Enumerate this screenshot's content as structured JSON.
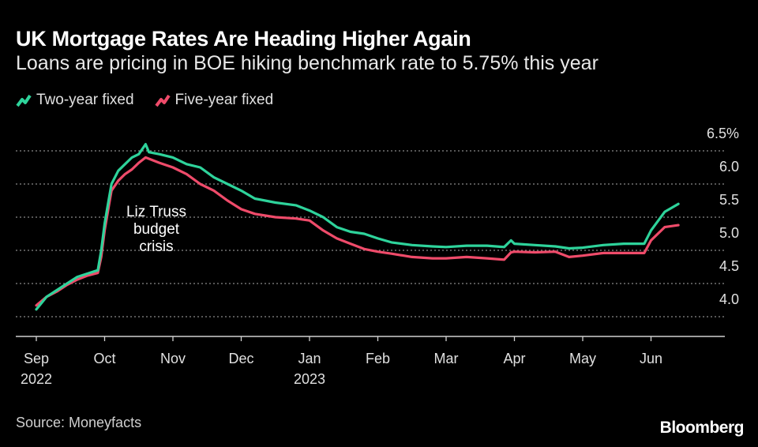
{
  "chart_data": {
    "type": "line",
    "title": "UK Mortgage Rates Are Heading Higher Again",
    "subtitle": "Loans are pricing in BOE hiking benchmark rate to 5.75% this year",
    "ylim": [
      3.75,
      6.75
    ],
    "yticks": [
      {
        "value": 6.5,
        "label": "6.5%"
      },
      {
        "value": 6.0,
        "label": "6.0"
      },
      {
        "value": 5.5,
        "label": "5.5"
      },
      {
        "value": 5.0,
        "label": "5.0"
      },
      {
        "value": 4.5,
        "label": "4.5"
      },
      {
        "value": 4.0,
        "label": "4.0"
      }
    ],
    "xticks": [
      {
        "month": 0,
        "label": "Sep",
        "sub": "2022"
      },
      {
        "month": 1,
        "label": "Oct",
        "sub": ""
      },
      {
        "month": 2,
        "label": "Nov",
        "sub": ""
      },
      {
        "month": 3,
        "label": "Dec",
        "sub": ""
      },
      {
        "month": 4,
        "label": "Jan",
        "sub": "2023"
      },
      {
        "month": 5,
        "label": "Feb",
        "sub": ""
      },
      {
        "month": 6,
        "label": "Mar",
        "sub": ""
      },
      {
        "month": 7,
        "label": "Apr",
        "sub": ""
      },
      {
        "month": 8,
        "label": "May",
        "sub": ""
      },
      {
        "month": 9,
        "label": "Jun",
        "sub": ""
      }
    ],
    "series": [
      {
        "name": "Two-year fixed",
        "color": "#2ed39b",
        "points": [
          [
            0,
            4.11
          ],
          [
            0.15,
            4.3
          ],
          [
            0.3,
            4.4
          ],
          [
            0.45,
            4.5
          ],
          [
            0.6,
            4.6
          ],
          [
            0.75,
            4.65
          ],
          [
            0.9,
            4.7
          ],
          [
            0.95,
            5.0
          ],
          [
            1.0,
            5.4
          ],
          [
            1.05,
            5.7
          ],
          [
            1.1,
            6.0
          ],
          [
            1.2,
            6.2
          ],
          [
            1.3,
            6.3
          ],
          [
            1.4,
            6.4
          ],
          [
            1.5,
            6.45
          ],
          [
            1.6,
            6.6
          ],
          [
            1.65,
            6.48
          ],
          [
            1.8,
            6.45
          ],
          [
            2.0,
            6.4
          ],
          [
            2.2,
            6.3
          ],
          [
            2.4,
            6.25
          ],
          [
            2.6,
            6.1
          ],
          [
            2.8,
            6.0
          ],
          [
            3.0,
            5.9
          ],
          [
            3.2,
            5.78
          ],
          [
            3.5,
            5.72
          ],
          [
            3.8,
            5.68
          ],
          [
            4.0,
            5.6
          ],
          [
            4.2,
            5.5
          ],
          [
            4.4,
            5.35
          ],
          [
            4.6,
            5.28
          ],
          [
            4.8,
            5.25
          ],
          [
            5.0,
            5.18
          ],
          [
            5.2,
            5.12
          ],
          [
            5.5,
            5.08
          ],
          [
            5.8,
            5.06
          ],
          [
            6.0,
            5.05
          ],
          [
            6.3,
            5.07
          ],
          [
            6.6,
            5.07
          ],
          [
            6.85,
            5.05
          ],
          [
            6.95,
            5.15
          ],
          [
            7.0,
            5.1
          ],
          [
            7.3,
            5.08
          ],
          [
            7.6,
            5.06
          ],
          [
            7.8,
            5.03
          ],
          [
            8.0,
            5.04
          ],
          [
            8.3,
            5.08
          ],
          [
            8.6,
            5.1
          ],
          [
            8.9,
            5.1
          ],
          [
            9.0,
            5.3
          ],
          [
            9.2,
            5.58
          ],
          [
            9.4,
            5.7
          ]
        ]
      },
      {
        "name": "Five-year fixed",
        "color": "#ef4b6a",
        "points": [
          [
            0,
            4.17
          ],
          [
            0.15,
            4.3
          ],
          [
            0.3,
            4.38
          ],
          [
            0.45,
            4.48
          ],
          [
            0.6,
            4.56
          ],
          [
            0.75,
            4.62
          ],
          [
            0.9,
            4.66
          ],
          [
            0.95,
            4.9
          ],
          [
            1.0,
            5.3
          ],
          [
            1.05,
            5.6
          ],
          [
            1.1,
            5.9
          ],
          [
            1.2,
            6.05
          ],
          [
            1.3,
            6.15
          ],
          [
            1.4,
            6.22
          ],
          [
            1.5,
            6.32
          ],
          [
            1.6,
            6.4
          ],
          [
            1.8,
            6.32
          ],
          [
            2.0,
            6.25
          ],
          [
            2.2,
            6.15
          ],
          [
            2.4,
            6.0
          ],
          [
            2.6,
            5.9
          ],
          [
            2.8,
            5.75
          ],
          [
            3.0,
            5.62
          ],
          [
            3.2,
            5.55
          ],
          [
            3.5,
            5.5
          ],
          [
            3.8,
            5.48
          ],
          [
            4.0,
            5.45
          ],
          [
            4.2,
            5.3
          ],
          [
            4.4,
            5.18
          ],
          [
            4.6,
            5.1
          ],
          [
            4.8,
            5.02
          ],
          [
            5.0,
            4.98
          ],
          [
            5.2,
            4.95
          ],
          [
            5.5,
            4.9
          ],
          [
            5.8,
            4.88
          ],
          [
            6.0,
            4.88
          ],
          [
            6.3,
            4.9
          ],
          [
            6.6,
            4.88
          ],
          [
            6.85,
            4.86
          ],
          [
            6.95,
            4.97
          ],
          [
            7.0,
            4.98
          ],
          [
            7.3,
            4.97
          ],
          [
            7.6,
            4.98
          ],
          [
            7.8,
            4.9
          ],
          [
            8.0,
            4.92
          ],
          [
            8.3,
            4.96
          ],
          [
            8.6,
            4.96
          ],
          [
            8.9,
            4.96
          ],
          [
            9.0,
            5.15
          ],
          [
            9.2,
            5.35
          ],
          [
            9.4,
            5.38
          ]
        ]
      }
    ],
    "annotation": {
      "lines": [
        "Liz Truss",
        "budget",
        "crisis"
      ]
    }
  },
  "legend": [
    {
      "label": "Two-year fixed",
      "color": "#2ed39b"
    },
    {
      "label": "Five-year fixed",
      "color": "#ef4b6a"
    }
  ],
  "footer": {
    "source": "Source: Moneyfacts",
    "brand": "Bloomberg"
  }
}
